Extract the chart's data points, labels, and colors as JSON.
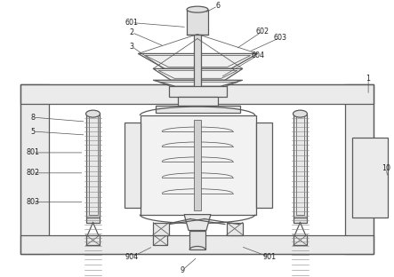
{
  "bg_color": "#ffffff",
  "lc": "#5a5a5a",
  "lw": 0.9,
  "lt": 0.55
}
